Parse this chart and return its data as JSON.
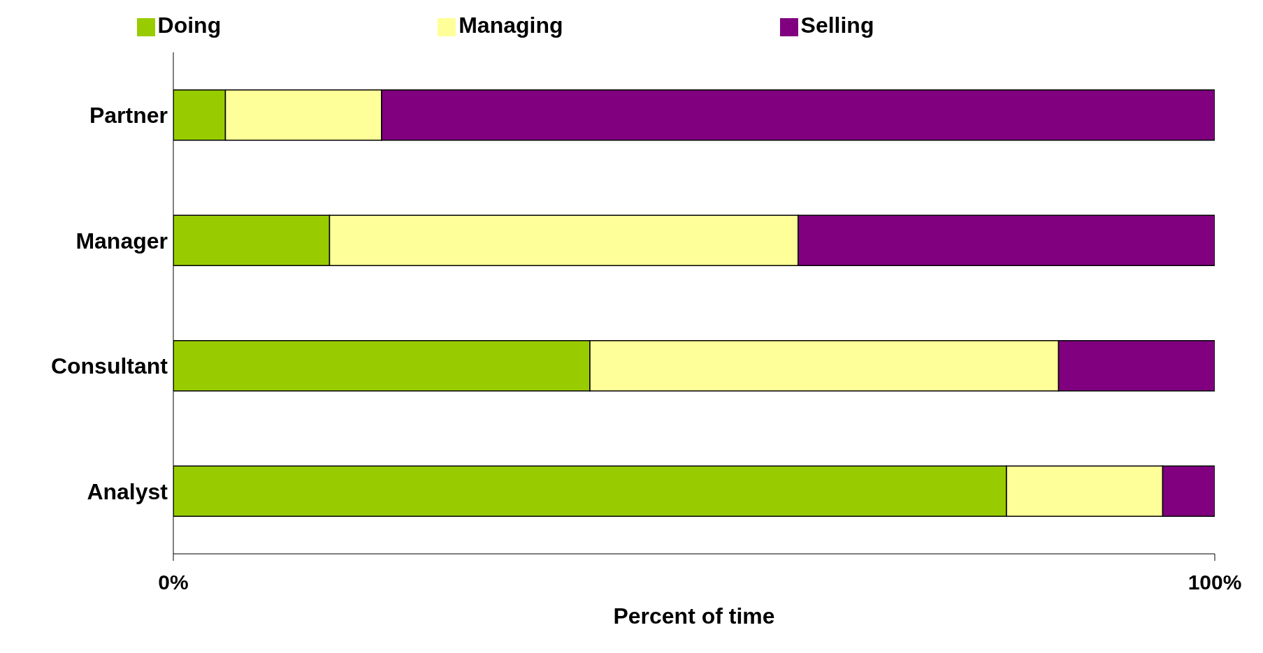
{
  "chart_data": {
    "type": "bar",
    "orientation": "horizontal",
    "stacked": true,
    "categories": [
      "Partner",
      "Manager",
      "Consultant",
      "Analyst"
    ],
    "series": [
      {
        "name": "Doing",
        "color": "#99cc00",
        "values": [
          5,
          15,
          40,
          80
        ]
      },
      {
        "name": "Managing",
        "color": "#ffff99",
        "values": [
          15,
          45,
          45,
          15
        ]
      },
      {
        "name": "Selling",
        "color": "#800080",
        "values": [
          80,
          40,
          15,
          5
        ]
      }
    ],
    "xlim": [
      0,
      100
    ],
    "xticks": [
      {
        "value": 0,
        "label": "0%"
      },
      {
        "value": 100,
        "label": "100%"
      }
    ],
    "xlabel": "Percent of time",
    "legend": "top"
  }
}
